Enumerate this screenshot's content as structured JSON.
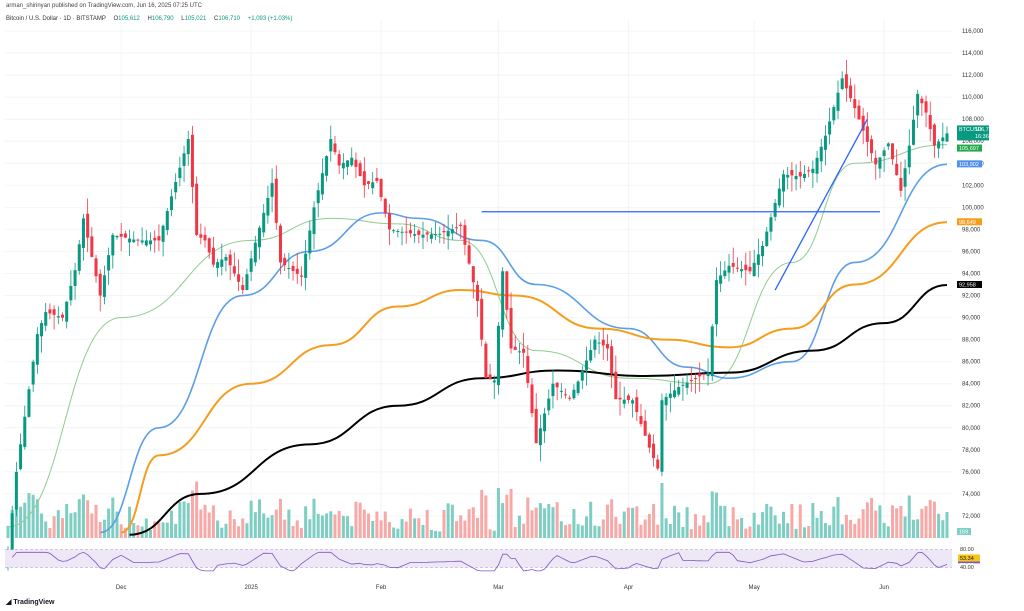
{
  "header": {
    "published": "arman_shirinyan published on TradingView.com, Jun 16, 2025 07:25 UTC",
    "symbol": "Bitcoin / U.S. Dollar · 1D · BITSTAMP",
    "ohlc": [
      {
        "k": "O",
        "v": "105,612"
      },
      {
        "k": "H",
        "v": "106,790"
      },
      {
        "k": "L",
        "v": "105,021"
      },
      {
        "k": "C",
        "v": "106,710"
      },
      {
        "k": "",
        "v": "+1,093 (+1.03%)"
      }
    ]
  },
  "footer": {
    "logo_text": "TradingView"
  },
  "colors": {
    "up": "#089981",
    "down": "#f23645",
    "vol_up": "#7fcec3",
    "vol_down": "#f7a9a7",
    "ma_fast": "#8fcc8f",
    "ma_mid": "#5b9ee9",
    "ma_slow": "#f59d1d",
    "ma_long": "#000000",
    "trend": "#2962ff",
    "rsi": "#7e57c2"
  },
  "chart_data": {
    "type": "candlestick",
    "symbol": "BTCUSD",
    "interval": "1D",
    "ylim": [
      70000,
      117000
    ],
    "yticks": [
      72000,
      74000,
      76000,
      78000,
      80000,
      82000,
      84000,
      86000,
      88000,
      90000,
      92000,
      94000,
      96000,
      98000,
      100000,
      102000,
      104000,
      106000,
      108000,
      110000,
      112000,
      114000,
      116000
    ],
    "xticks": [
      {
        "label": "Dec",
        "date": "2024-12-01"
      },
      {
        "label": "2025",
        "date": "2025-01-01"
      },
      {
        "label": "Feb",
        "date": "2025-02-01"
      },
      {
        "label": "Mar",
        "date": "2025-03-01"
      },
      {
        "label": "Apr",
        "date": "2025-04-01"
      },
      {
        "label": "May",
        "date": "2025-05-01"
      },
      {
        "label": "Jun",
        "date": "2025-06-01"
      }
    ],
    "start_date": "2024-11-04",
    "end_date": "2025-06-16",
    "close_anchors": [
      [
        "2024-11-04",
        68500
      ],
      [
        "2024-11-06",
        76000
      ],
      [
        "2024-11-11",
        88500
      ],
      [
        "2024-11-13",
        90500
      ],
      [
        "2024-11-17",
        90000
      ],
      [
        "2024-11-20",
        94300
      ],
      [
        "2024-11-22",
        99000
      ],
      [
        "2024-11-26",
        92000
      ],
      [
        "2024-11-29",
        97500
      ],
      [
        "2024-12-05",
        97000
      ],
      [
        "2024-12-10",
        97000
      ],
      [
        "2024-12-13",
        101000
      ],
      [
        "2024-12-17",
        106200
      ],
      [
        "2024-12-19",
        97500
      ],
      [
        "2024-12-21",
        97000
      ],
      [
        "2024-12-23",
        94800
      ],
      [
        "2024-12-26",
        95500
      ],
      [
        "2024-12-30",
        92500
      ],
      [
        "2025-01-02",
        96800
      ],
      [
        "2025-01-06",
        102200
      ],
      [
        "2025-01-08",
        95000
      ],
      [
        "2025-01-10",
        94500
      ],
      [
        "2025-01-13",
        93700
      ],
      [
        "2025-01-16",
        100000
      ],
      [
        "2025-01-20",
        106200
      ],
      [
        "2025-01-22",
        103800
      ],
      [
        "2025-01-25",
        104500
      ],
      [
        "2025-01-28",
        102000
      ],
      [
        "2025-01-31",
        102400
      ],
      [
        "2025-02-03",
        98000
      ],
      [
        "2025-02-10",
        97500
      ],
      [
        "2025-02-15",
        97600
      ],
      [
        "2025-02-20",
        98300
      ],
      [
        "2025-02-24",
        91500
      ],
      [
        "2025-02-26",
        84500
      ],
      [
        "2025-02-28",
        84300
      ],
      [
        "2025-03-02",
        94200
      ],
      [
        "2025-03-04",
        87200
      ],
      [
        "2025-03-07",
        86800
      ],
      [
        "2025-03-10",
        78600
      ],
      [
        "2025-03-14",
        84000
      ],
      [
        "2025-03-18",
        82700
      ],
      [
        "2025-03-20",
        84200
      ],
      [
        "2025-03-24",
        88000
      ],
      [
        "2025-03-27",
        87200
      ],
      [
        "2025-03-29",
        82600
      ],
      [
        "2025-04-02",
        82500
      ],
      [
        "2025-04-06",
        78200
      ],
      [
        "2025-04-08",
        76300
      ],
      [
        "2025-04-09",
        82500
      ],
      [
        "2025-04-13",
        83700
      ],
      [
        "2025-04-17",
        84500
      ],
      [
        "2025-04-20",
        85000
      ],
      [
        "2025-04-22",
        93400
      ],
      [
        "2025-04-25",
        94700
      ],
      [
        "2025-04-30",
        94200
      ],
      [
        "2025-05-03",
        96500
      ],
      [
        "2025-05-08",
        103000
      ],
      [
        "2025-05-12",
        102800
      ],
      [
        "2025-05-15",
        103500
      ],
      [
        "2025-05-18",
        106500
      ],
      [
        "2025-05-22",
        111700
      ],
      [
        "2025-05-25",
        109000
      ],
      [
        "2025-05-30",
        103900
      ],
      [
        "2025-06-02",
        105800
      ],
      [
        "2025-06-05",
        101500
      ],
      [
        "2025-06-07",
        105600
      ],
      [
        "2025-06-09",
        110300
      ],
      [
        "2025-06-11",
        108600
      ],
      [
        "2025-06-13",
        105600
      ],
      [
        "2025-06-16",
        106710
      ]
    ],
    "moving_averages": [
      {
        "id": "ma-fast",
        "last": 105697,
        "points": [
          [
            "2024-11-04",
            71000
          ],
          [
            "2024-12-01",
            90000
          ],
          [
            "2025-01-01",
            97000
          ],
          [
            "2025-01-20",
            99000
          ],
          [
            "2025-02-05",
            98500
          ],
          [
            "2025-02-20",
            97000
          ],
          [
            "2025-03-10",
            87000
          ],
          [
            "2025-04-01",
            84500
          ],
          [
            "2025-04-20",
            84000
          ],
          [
            "2025-05-10",
            95000
          ],
          [
            "2025-05-25",
            104000
          ],
          [
            "2025-06-16",
            105697
          ]
        ]
      },
      {
        "id": "ma-mid",
        "last": 103902,
        "points": [
          [
            "2024-11-26",
            70500
          ],
          [
            "2024-12-10",
            80000
          ],
          [
            "2024-12-30",
            92000
          ],
          [
            "2025-01-15",
            96000
          ],
          [
            "2025-02-01",
            99500
          ],
          [
            "2025-02-10",
            99000
          ],
          [
            "2025-02-25",
            97000
          ],
          [
            "2025-03-10",
            93000
          ],
          [
            "2025-04-01",
            89000
          ],
          [
            "2025-04-15",
            85500
          ],
          [
            "2025-04-25",
            84500
          ],
          [
            "2025-05-10",
            86000
          ],
          [
            "2025-05-25",
            95000
          ],
          [
            "2025-06-16",
            103902
          ]
        ]
      },
      {
        "id": "ma-slow",
        "last": 98649,
        "points": [
          [
            "2024-12-01",
            70500
          ],
          [
            "2024-12-10",
            77500
          ],
          [
            "2025-01-01",
            84000
          ],
          [
            "2025-01-20",
            87500
          ],
          [
            "2025-02-05",
            91000
          ],
          [
            "2025-02-20",
            92500
          ],
          [
            "2025-03-05",
            92000
          ],
          [
            "2025-03-25",
            89000
          ],
          [
            "2025-04-10",
            88000
          ],
          [
            "2025-04-25",
            87300
          ],
          [
            "2025-05-10",
            89000
          ],
          [
            "2025-05-25",
            93000
          ],
          [
            "2025-06-16",
            98649
          ]
        ]
      },
      {
        "id": "ma-long",
        "last": 92958,
        "points": [
          [
            "2024-12-03",
            70300
          ],
          [
            "2024-12-20",
            74000
          ],
          [
            "2025-01-15",
            78500
          ],
          [
            "2025-02-05",
            82000
          ],
          [
            "2025-02-25",
            84500
          ],
          [
            "2025-03-15",
            85200
          ],
          [
            "2025-04-05",
            84700
          ],
          [
            "2025-04-25",
            85000
          ],
          [
            "2025-05-15",
            87000
          ],
          [
            "2025-06-01",
            89500
          ],
          [
            "2025-06-16",
            92958
          ]
        ]
      }
    ],
    "trendlines": [
      {
        "id": "resistance-line",
        "from": [
          "2025-02-25",
          99600
        ],
        "to": [
          "2025-05-31",
          99600
        ]
      },
      {
        "id": "uptrend-line",
        "from": [
          "2025-05-06",
          92500
        ],
        "to": [
          "2025-05-28",
          108000
        ]
      }
    ],
    "price_badges": [
      {
        "label": "BTCUSD",
        "value": "106,710",
        "sub": "16:36:09",
        "color": "#089981"
      },
      {
        "value": "105,697",
        "color": "#23a94a"
      },
      {
        "value": "103,902",
        "color": "#4e8fe8"
      },
      {
        "value": "98,649",
        "color": "#f59d1d"
      },
      {
        "value": "92,958",
        "color": "#000000"
      }
    ],
    "volume_last": "169",
    "rsi": {
      "labels": [
        "80.00",
        "53.34",
        "53.23",
        "40.00"
      ],
      "levels": [
        80,
        40
      ],
      "last": 53.23,
      "ma": 53.34
    }
  }
}
